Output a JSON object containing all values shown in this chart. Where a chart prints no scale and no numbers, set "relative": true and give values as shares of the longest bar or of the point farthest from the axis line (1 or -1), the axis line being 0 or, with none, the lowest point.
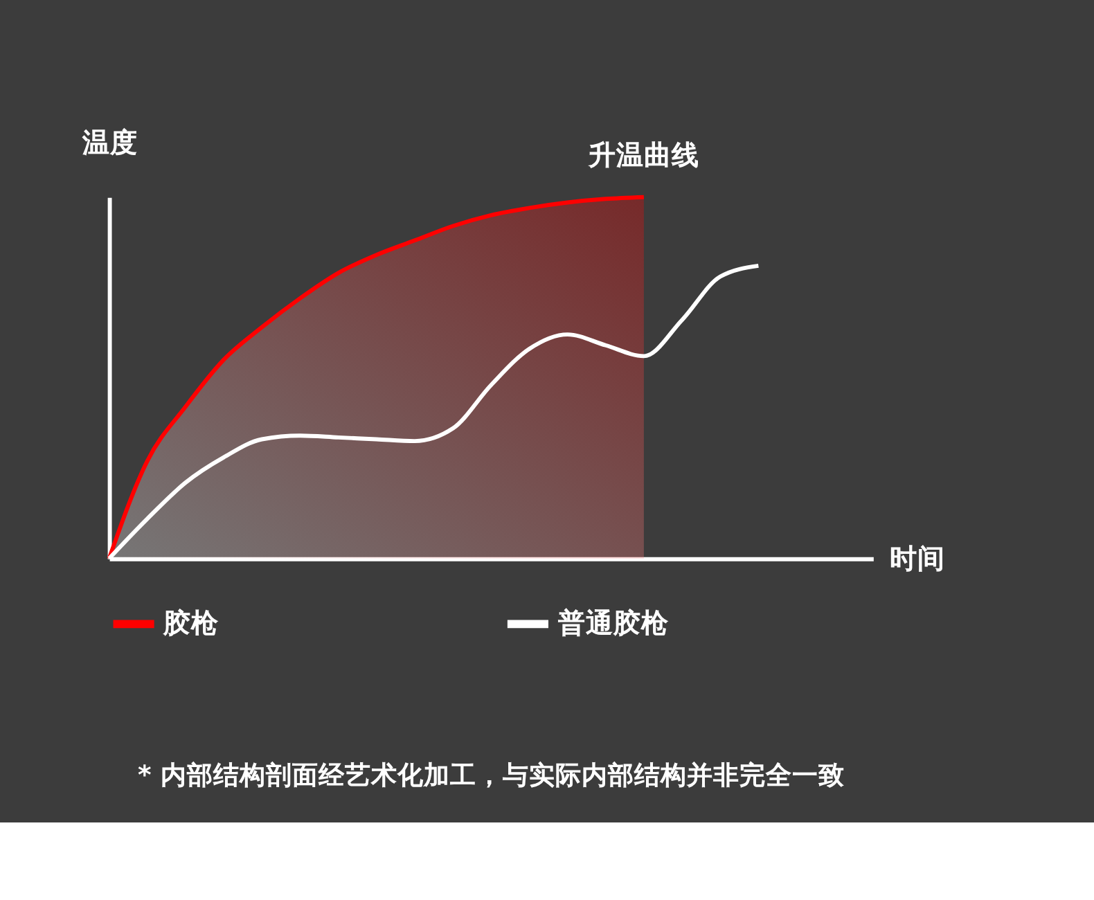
{
  "chart_data": {
    "type": "line",
    "relative": true,
    "xlabel": "时间",
    "ylabel": "温度",
    "categories": [
      null,
      null,
      null,
      null,
      null,
      null,
      null,
      null,
      null,
      null,
      null,
      null,
      null,
      null,
      null,
      null,
      null,
      null,
      null,
      null,
      null
    ],
    "series": [
      {
        "name": "胶枪",
        "color": "#ff0000",
        "type": "area",
        "values": [
          0,
          0.27,
          0.42,
          0.55,
          0.64,
          0.72,
          0.79,
          0.84,
          0.88,
          0.92,
          0.95,
          0.97,
          0.985,
          0.995,
          1,
          null,
          null,
          null,
          null,
          null,
          null
        ]
      },
      {
        "name": "普通胶枪",
        "color": "#ffffff",
        "values": [
          0,
          0.11,
          0.21,
          0.28,
          0.33,
          0.34,
          0.335,
          0.33,
          0.325,
          0.36,
          0.48,
          0.58,
          0.62,
          0.59,
          0.56,
          0.66,
          0.78,
          0.81,
          null,
          null,
          null
        ]
      }
    ],
    "annotations": [
      "升温曲线",
      "* 内部结构剖面经艺术化加工，与实际内部结构并非完全一致"
    ],
    "legend": "bottom"
  }
}
